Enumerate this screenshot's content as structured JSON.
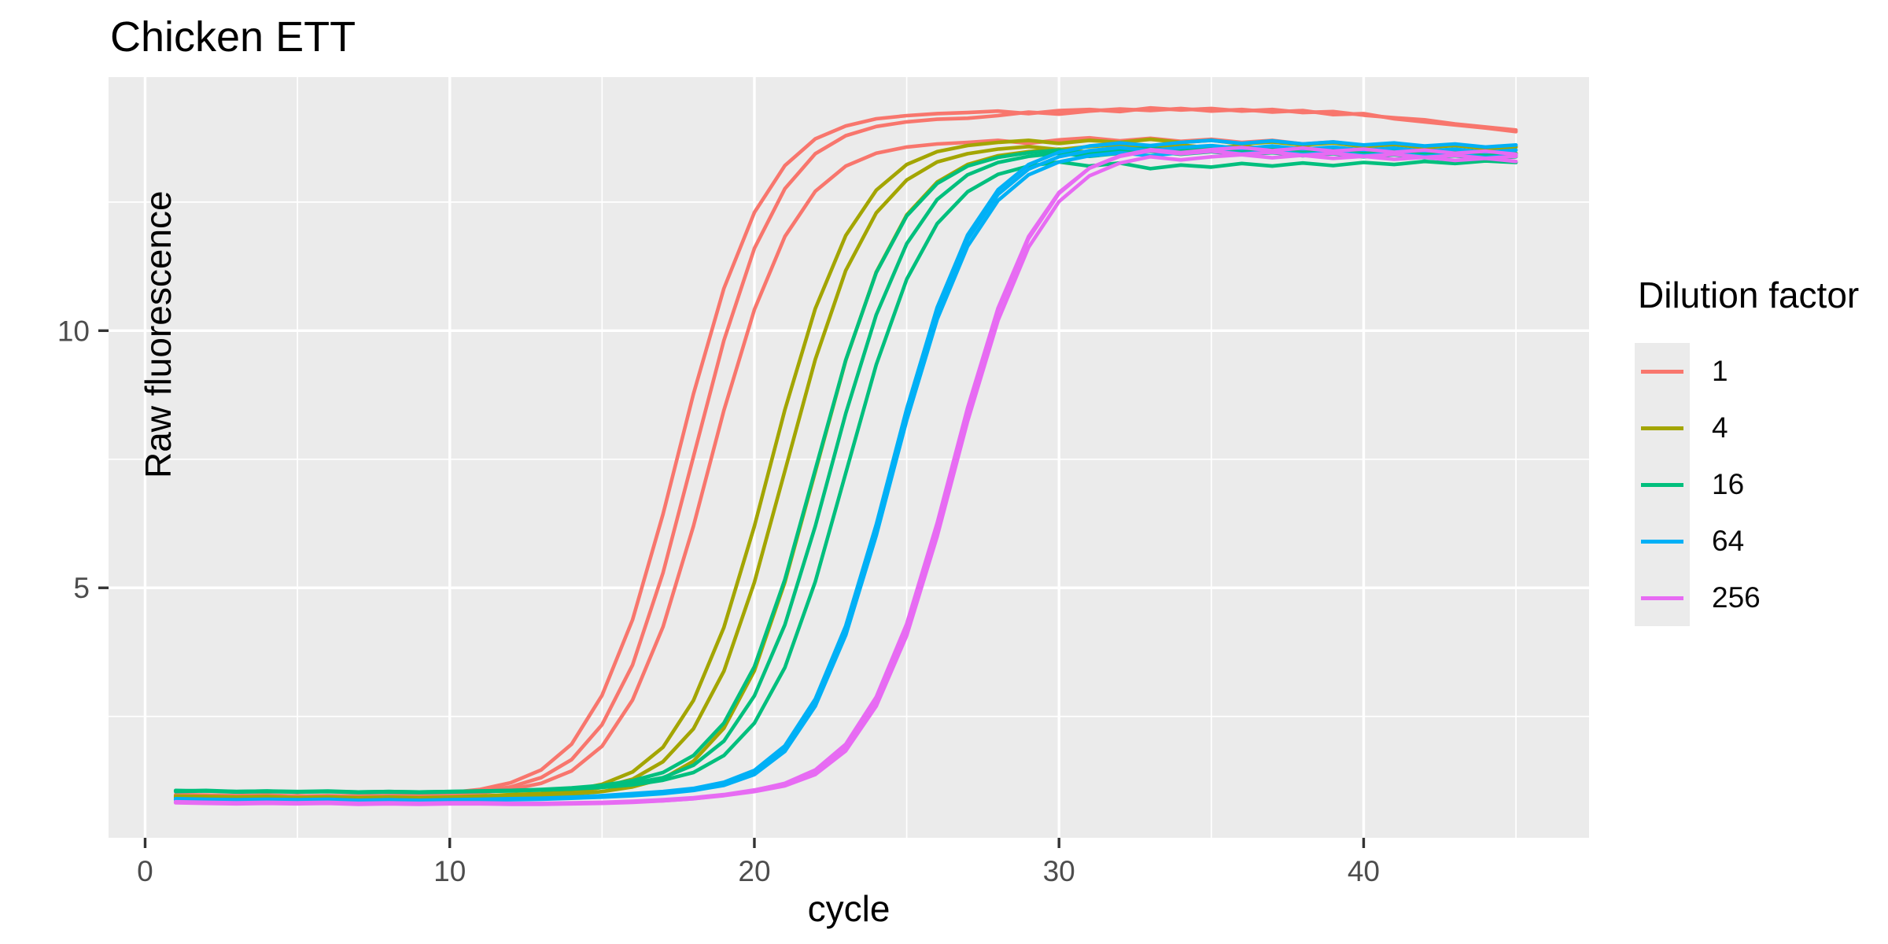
{
  "title": "Chicken ETT",
  "legend": {
    "title": "Dilution factor",
    "entries": [
      {
        "label": "1",
        "color": "#F8766D"
      },
      {
        "label": "4",
        "color": "#A3A500"
      },
      {
        "label": "16",
        "color": "#00BF7D"
      },
      {
        "label": "64",
        "color": "#00B0F6"
      },
      {
        "label": "256",
        "color": "#E76BF3"
      }
    ]
  },
  "colors": {
    "panel_background": "#EBEBEB",
    "gridline": "#FFFFFF",
    "tick_label": "#4D4D4D",
    "tick_mark": "#333333",
    "text": "#000000"
  },
  "chart_data": {
    "type": "line",
    "title": "Chicken ETT",
    "xlabel": "cycle",
    "ylabel": "Raw fluorescence",
    "legend_title": "Dilution factor",
    "legend_position": "right",
    "grid": "on",
    "x_domain": [
      -1.2,
      47.4
    ],
    "y_domain": [
      0.14,
      14.93
    ],
    "x_major_ticks": [
      0,
      10,
      20,
      30,
      40
    ],
    "x_minor_ticks": [
      5,
      15,
      25,
      35,
      45
    ],
    "y_major_ticks": [
      5,
      10
    ],
    "y_minor_ticks": [
      2.5,
      7.5,
      12.5
    ],
    "cycles": [
      1,
      2,
      3,
      4,
      5,
      6,
      7,
      8,
      9,
      10,
      11,
      12,
      13,
      14,
      15,
      16,
      17,
      18,
      19,
      20,
      21,
      22,
      23,
      24,
      25,
      26,
      27,
      28,
      29,
      30,
      31,
      32,
      33,
      34,
      35,
      36,
      37,
      38,
      39,
      40,
      41,
      42,
      43,
      44,
      45
    ],
    "series": [
      {
        "dilution_factor": "1",
        "color": "#F8766D",
        "replicates": [
          [
            0.98,
            0.97,
            0.96,
            0.97,
            0.95,
            0.96,
            0.95,
            0.96,
            0.97,
            1.02,
            1.08,
            1.21,
            1.46,
            1.96,
            2.91,
            4.38,
            6.43,
            8.77,
            10.82,
            12.3,
            13.21,
            13.73,
            13.98,
            14.12,
            14.18,
            14.22,
            14.24,
            14.27,
            14.22,
            14.28,
            14.3,
            14.26,
            14.33,
            14.29,
            14.32,
            14.27,
            14.3,
            14.24,
            14.26,
            14.19,
            14.14,
            14.1,
            14.02,
            13.96,
            13.9
          ],
          [
            0.96,
            0.95,
            0.95,
            0.94,
            0.96,
            0.94,
            0.95,
            0.94,
            0.96,
            0.99,
            1.04,
            1.13,
            1.31,
            1.66,
            2.34,
            3.5,
            5.29,
            7.55,
            9.81,
            11.6,
            12.76,
            13.44,
            13.79,
            13.97,
            14.06,
            14.11,
            14.13,
            14.18,
            14.25,
            14.21,
            14.27,
            14.31,
            14.28,
            14.32,
            14.27,
            14.3,
            14.25,
            14.28,
            14.2,
            14.22,
            14.12,
            14.06,
            14.0,
            13.94,
            13.87
          ],
          [
            0.94,
            0.95,
            0.93,
            0.95,
            0.94,
            0.95,
            0.93,
            0.95,
            0.94,
            0.97,
            1.01,
            1.08,
            1.2,
            1.44,
            1.92,
            2.82,
            4.24,
            6.2,
            8.45,
            10.41,
            11.83,
            12.71,
            13.2,
            13.45,
            13.57,
            13.63,
            13.66,
            13.7,
            13.64,
            13.71,
            13.75,
            13.69,
            13.74,
            13.68,
            13.72,
            13.66,
            13.7,
            13.63,
            13.67,
            13.6,
            13.64,
            13.58,
            13.61,
            13.55,
            13.58
          ]
        ]
      },
      {
        "dilution_factor": "4",
        "color": "#A3A500",
        "replicates": [
          [
            0.95,
            0.94,
            0.93,
            0.94,
            0.92,
            0.93,
            0.92,
            0.93,
            0.92,
            0.93,
            0.95,
            0.98,
            1.0,
            1.06,
            1.18,
            1.42,
            1.9,
            2.81,
            4.23,
            6.2,
            8.46,
            10.43,
            11.85,
            12.73,
            13.23,
            13.48,
            13.6,
            13.66,
            13.7,
            13.64,
            13.7,
            13.66,
            13.72,
            13.66,
            13.7,
            13.63,
            13.67,
            13.61,
            13.65,
            13.58,
            13.62,
            13.56,
            13.6,
            13.54,
            13.57
          ],
          [
            0.93,
            0.94,
            0.92,
            0.93,
            0.92,
            0.93,
            0.91,
            0.92,
            0.91,
            0.92,
            0.93,
            0.95,
            0.98,
            1.03,
            1.12,
            1.28,
            1.62,
            2.26,
            3.38,
            5.11,
            7.27,
            9.44,
            11.17,
            12.29,
            12.93,
            13.28,
            13.44,
            13.53,
            13.58,
            13.52,
            13.58,
            13.62,
            13.56,
            13.61,
            13.55,
            13.59,
            13.52,
            13.56,
            13.5,
            13.54,
            13.48,
            13.52,
            13.46,
            13.5,
            13.44
          ],
          [
            0.92,
            0.93,
            0.91,
            0.92,
            0.91,
            0.92,
            0.9,
            0.91,
            0.9,
            0.91,
            0.92,
            0.94,
            0.96,
            0.99,
            1.04,
            1.13,
            1.29,
            1.63,
            2.27,
            3.39,
            5.11,
            7.26,
            9.42,
            11.14,
            12.25,
            12.89,
            13.23,
            13.4,
            13.48,
            13.53,
            13.47,
            13.53,
            13.57,
            13.51,
            13.56,
            13.5,
            13.54,
            13.47,
            13.51,
            13.45,
            13.49,
            13.43,
            13.47,
            13.41,
            13.45
          ]
        ]
      },
      {
        "dilution_factor": "16",
        "color": "#00BF7D",
        "replicates": [
          [
            1.06,
            1.05,
            1.04,
            1.05,
            1.03,
            1.04,
            1.03,
            1.04,
            1.03,
            1.04,
            1.05,
            1.06,
            1.08,
            1.11,
            1.16,
            1.25,
            1.41,
            1.74,
            2.37,
            3.47,
            5.16,
            7.3,
            9.43,
            11.13,
            12.23,
            12.86,
            13.2,
            13.37,
            13.46,
            13.51,
            13.45,
            13.51,
            13.55,
            13.49,
            13.54,
            13.48,
            13.52,
            13.46,
            13.5,
            13.44,
            13.48,
            13.42,
            13.46,
            13.4,
            13.44
          ],
          [
            1.04,
            1.05,
            1.03,
            1.04,
            1.03,
            1.04,
            1.02,
            1.03,
            1.02,
            1.03,
            1.04,
            1.05,
            1.07,
            1.09,
            1.13,
            1.2,
            1.31,
            1.55,
            2.02,
            2.9,
            4.28,
            6.2,
            8.39,
            10.31,
            11.69,
            12.55,
            13.03,
            13.27,
            13.39,
            13.45,
            13.39,
            13.45,
            13.49,
            13.43,
            13.48,
            13.42,
            13.46,
            13.4,
            13.44,
            13.38,
            13.42,
            13.36,
            13.4,
            13.34,
            13.38
          ],
          [
            1.05,
            1.06,
            1.04,
            1.05,
            1.04,
            1.05,
            1.03,
            1.04,
            1.03,
            1.04,
            1.05,
            1.06,
            1.07,
            1.09,
            1.12,
            1.17,
            1.26,
            1.41,
            1.74,
            2.37,
            3.45,
            5.12,
            7.23,
            9.34,
            11.0,
            12.08,
            12.7,
            13.04,
            13.2,
            13.28,
            13.2,
            13.26,
            13.15,
            13.22,
            13.18,
            13.25,
            13.2,
            13.26,
            13.21,
            13.27,
            13.23,
            13.29,
            13.25,
            13.3,
            13.27
          ]
        ]
      },
      {
        "dilution_factor": "64",
        "color": "#00B0F6",
        "replicates": [
          [
            0.9,
            0.89,
            0.88,
            0.89,
            0.88,
            0.89,
            0.87,
            0.88,
            0.87,
            0.88,
            0.89,
            0.9,
            0.91,
            0.93,
            0.96,
            1.0,
            1.04,
            1.1,
            1.22,
            1.45,
            1.93,
            2.84,
            4.26,
            6.23,
            8.48,
            10.45,
            11.86,
            12.74,
            13.23,
            13.47,
            13.59,
            13.65,
            13.6,
            13.66,
            13.7,
            13.64,
            13.69,
            13.63,
            13.67,
            13.61,
            13.65,
            13.59,
            13.63,
            13.57,
            13.61
          ],
          [
            0.89,
            0.88,
            0.87,
            0.88,
            0.87,
            0.88,
            0.86,
            0.87,
            0.86,
            0.87,
            0.88,
            0.89,
            0.9,
            0.92,
            0.94,
            0.98,
            1.02,
            1.08,
            1.19,
            1.41,
            1.88,
            2.78,
            4.19,
            6.15,
            8.4,
            10.36,
            11.77,
            12.65,
            13.14,
            13.38,
            13.5,
            13.56,
            13.5,
            13.56,
            13.6,
            13.54,
            13.59,
            13.53,
            13.57,
            13.51,
            13.55,
            13.49,
            13.53,
            13.47,
            13.51
          ],
          [
            0.88,
            0.87,
            0.86,
            0.87,
            0.86,
            0.87,
            0.85,
            0.86,
            0.85,
            0.86,
            0.87,
            0.88,
            0.89,
            0.91,
            0.93,
            0.96,
            1.0,
            1.06,
            1.16,
            1.37,
            1.82,
            2.7,
            4.08,
            6.02,
            8.26,
            10.22,
            11.64,
            12.53,
            13.03,
            13.28,
            13.4,
            13.46,
            13.4,
            13.46,
            13.5,
            13.44,
            13.49,
            13.43,
            13.47,
            13.41,
            13.45,
            13.39,
            13.43,
            13.37,
            13.41
          ]
        ]
      },
      {
        "dilution_factor": "256",
        "color": "#E76BF3",
        "replicates": [
          [
            0.84,
            0.83,
            0.82,
            0.83,
            0.82,
            0.83,
            0.81,
            0.82,
            0.81,
            0.82,
            0.82,
            0.81,
            0.81,
            0.82,
            0.83,
            0.85,
            0.88,
            0.92,
            0.98,
            1.07,
            1.19,
            1.43,
            1.91,
            2.81,
            4.22,
            6.17,
            8.42,
            10.38,
            11.79,
            12.67,
            13.16,
            13.4,
            13.52,
            13.46,
            13.52,
            13.56,
            13.5,
            13.55,
            13.49,
            13.53,
            13.47,
            13.51,
            13.45,
            13.49,
            13.43
          ],
          [
            0.83,
            0.82,
            0.81,
            0.82,
            0.81,
            0.82,
            0.8,
            0.81,
            0.8,
            0.81,
            0.81,
            0.8,
            0.8,
            0.81,
            0.82,
            0.84,
            0.86,
            0.9,
            0.96,
            1.04,
            1.15,
            1.37,
            1.83,
            2.7,
            4.07,
            6.0,
            8.24,
            10.2,
            11.62,
            12.51,
            13.01,
            13.26,
            13.38,
            13.32,
            13.38,
            13.42,
            13.36,
            13.41,
            13.35,
            13.39,
            13.33,
            13.37,
            13.31,
            13.35,
            13.29
          ],
          [
            0.82,
            0.81,
            0.8,
            0.81,
            0.8,
            0.81,
            0.79,
            0.8,
            0.79,
            0.8,
            0.8,
            0.79,
            0.79,
            0.8,
            0.81,
            0.83,
            0.86,
            0.9,
            0.97,
            1.06,
            1.2,
            1.46,
            1.96,
            2.88,
            4.3,
            6.26,
            8.5,
            10.44,
            11.83,
            12.69,
            13.16,
            13.39,
            13.5,
            13.44,
            13.49,
            13.43,
            13.47,
            13.41,
            13.45,
            13.39,
            13.43,
            13.37,
            13.41,
            13.35,
            13.39
          ]
        ]
      }
    ]
  }
}
